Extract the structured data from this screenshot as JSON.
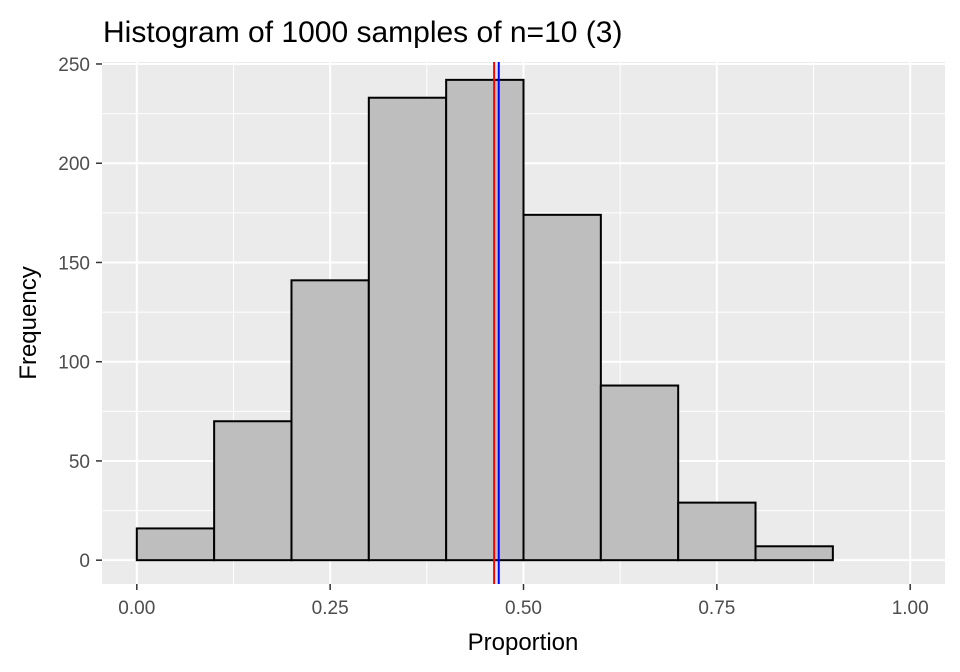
{
  "chart_data": {
    "type": "bar",
    "title": "Histogram of 1000 samples of n=10 (3)",
    "xlabel": "Proportion",
    "ylabel": "Frequency",
    "xlim": [
      -0.045,
      1.045
    ],
    "ylim": [
      -12,
      251
    ],
    "x_ticks": [
      {
        "value": 0.0,
        "label": "0.00"
      },
      {
        "value": 0.25,
        "label": "0.25"
      },
      {
        "value": 0.5,
        "label": "0.50"
      },
      {
        "value": 0.75,
        "label": "0.75"
      },
      {
        "value": 1.0,
        "label": "1.00"
      }
    ],
    "y_ticks": [
      {
        "value": 0,
        "label": "0"
      },
      {
        "value": 50,
        "label": "50"
      },
      {
        "value": 100,
        "label": "100"
      },
      {
        "value": 150,
        "label": "150"
      },
      {
        "value": 200,
        "label": "200"
      },
      {
        "value": 250,
        "label": "250"
      }
    ],
    "bin_edges": [
      0.0,
      0.1,
      0.2,
      0.3,
      0.4,
      0.5,
      0.6,
      0.7,
      0.8,
      0.9,
      1.0
    ],
    "values": [
      16,
      70,
      141,
      233,
      242,
      174,
      88,
      29,
      7,
      0
    ],
    "vlines": [
      {
        "x": 0.462,
        "color": "#ff0000"
      },
      {
        "x": 0.468,
        "color": "#0000ff"
      }
    ],
    "bar_fill": "#bebebe",
    "bar_stroke": "#000000",
    "panel_background": "#ebebeb",
    "grid_color": "#ffffff",
    "grid": true,
    "legend": "none"
  }
}
